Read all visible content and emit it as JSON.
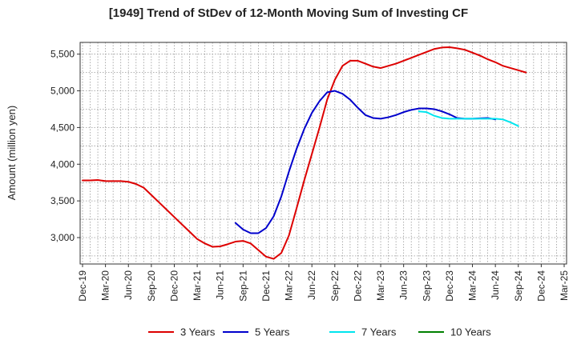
{
  "chart_data": {
    "type": "line",
    "title": "[1949]  Trend of StDev of 12-Month Moving Sum of Investing CF",
    "ylabel": "Amount (million yen)",
    "xlabel": "",
    "ylim": [
      2640,
      5660
    ],
    "yticks": [
      3000,
      3500,
      4000,
      4500,
      5000,
      5500
    ],
    "ytick_labels": [
      "3,000",
      "3,500",
      "4,000",
      "4,500",
      "5,000",
      "5,500"
    ],
    "x_range": [
      "2019-12",
      "2025-03"
    ],
    "xtick_labels": [
      "Dec-19",
      "Mar-20",
      "Jun-20",
      "Sep-20",
      "Dec-20",
      "Mar-21",
      "Jun-21",
      "Sep-21",
      "Dec-21",
      "Mar-22",
      "Jun-22",
      "Sep-22",
      "Dec-22",
      "Mar-23",
      "Jun-23",
      "Sep-23",
      "Dec-23",
      "Mar-24",
      "Jun-24",
      "Sep-24",
      "Dec-24",
      "Mar-25"
    ],
    "grid": true,
    "legend_position": "bottom",
    "series": [
      {
        "name": "3 Years",
        "color": "#dd0000",
        "start": "2019-12",
        "values": [
          3780,
          3780,
          3785,
          3770,
          3770,
          3770,
          3760,
          3730,
          3680,
          3580,
          3480,
          3380,
          3280,
          3180,
          3080,
          2980,
          2920,
          2875,
          2880,
          2910,
          2945,
          2955,
          2920,
          2830,
          2740,
          2710,
          2790,
          3030,
          3400,
          3780,
          4140,
          4500,
          4880,
          5150,
          5340,
          5410,
          5410,
          5370,
          5330,
          5310,
          5340,
          5370,
          5410,
          5450,
          5490,
          5530,
          5570,
          5590,
          5595,
          5580,
          5560,
          5520,
          5480,
          5430,
          5390,
          5340,
          5310,
          5280,
          5250
        ]
      },
      {
        "name": "5 Years",
        "color": "#0000cc",
        "start": "2021-08",
        "values": [
          3200,
          3110,
          3060,
          3060,
          3130,
          3290,
          3560,
          3900,
          4210,
          4480,
          4700,
          4860,
          4980,
          5000,
          4960,
          4880,
          4770,
          4670,
          4630,
          4620,
          4640,
          4670,
          4710,
          4740,
          4760,
          4760,
          4750,
          4720,
          4680,
          4630,
          4620,
          4620,
          4625,
          4630,
          4610
        ]
      },
      {
        "name": "7 Years",
        "color": "#00e5ee",
        "start": "2023-08",
        "values": [
          4720,
          4710,
          4660,
          4630,
          4620,
          4620,
          4620,
          4620,
          4620,
          4620,
          4620,
          4610,
          4570,
          4520
        ]
      },
      {
        "name": "10 Years",
        "color": "#008000",
        "start": "2024-09",
        "values": []
      }
    ]
  }
}
